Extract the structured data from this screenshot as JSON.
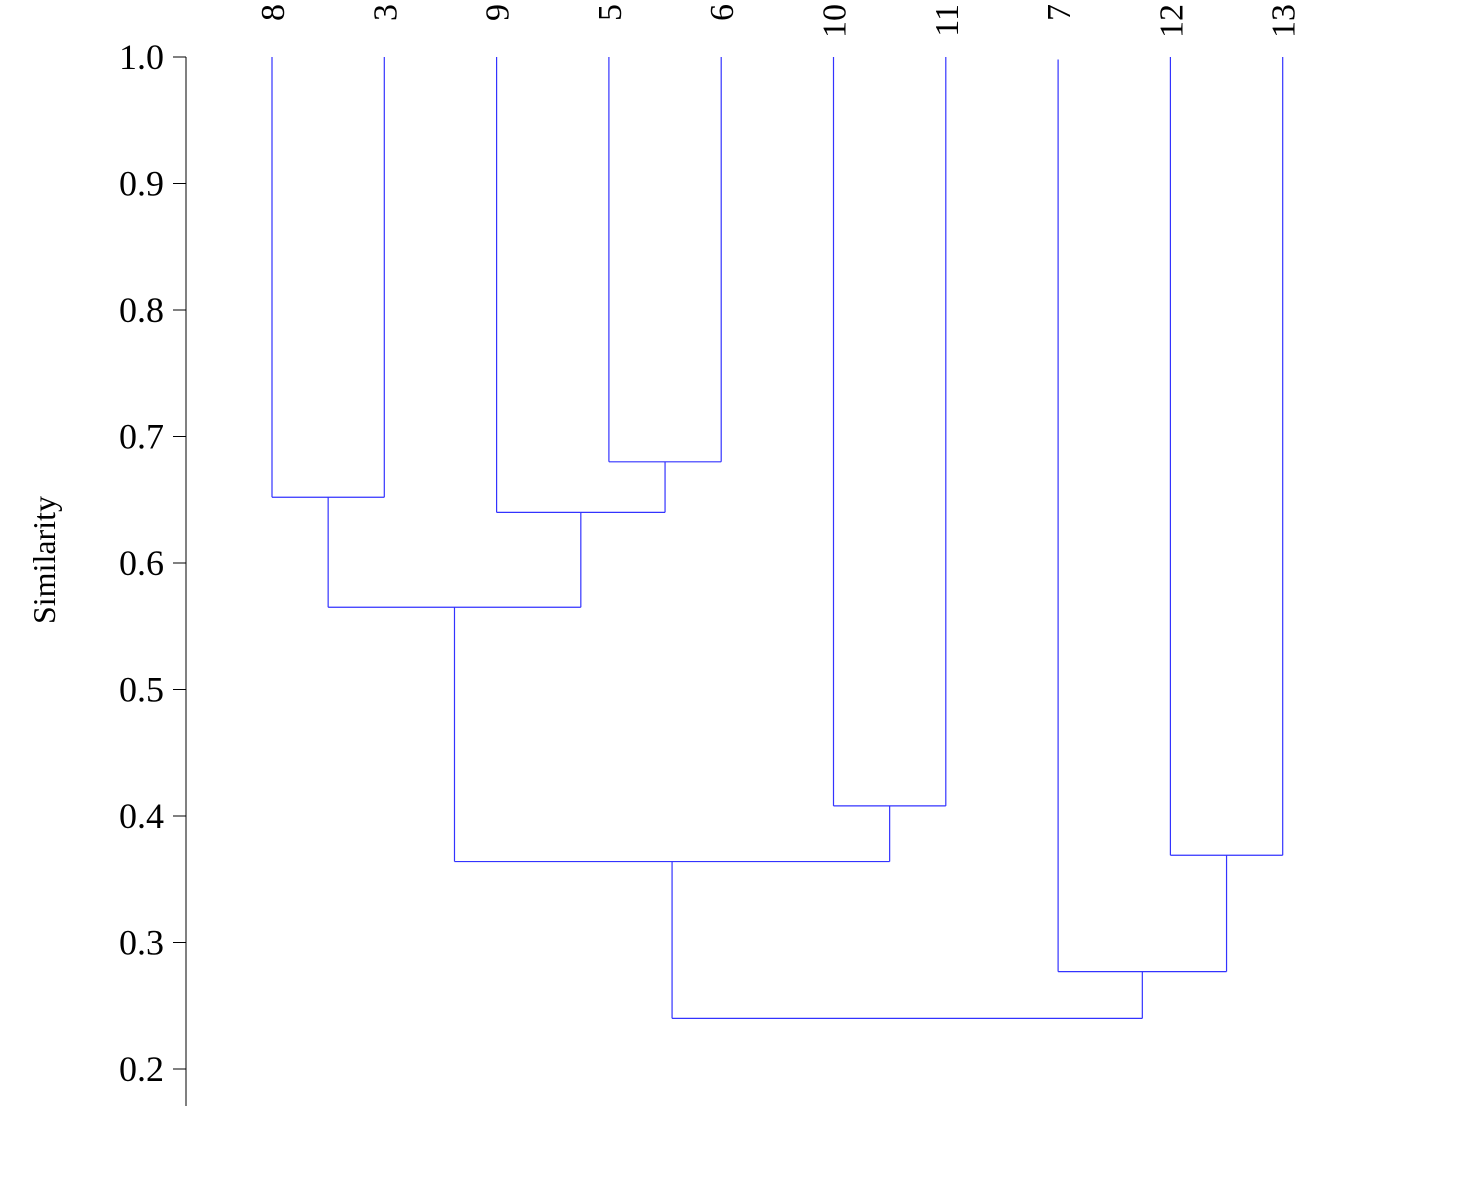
{
  "chart_data": {
    "type": "dendrogram",
    "ylabel": "Similarity",
    "ylim": [
      0.17,
      1.0
    ],
    "yticks": [
      1.0,
      0.9,
      0.8,
      0.7,
      0.6,
      0.5,
      0.4,
      0.3,
      0.2
    ],
    "ytick_labels": [
      "1.0",
      "0.9",
      "0.8",
      "0.7",
      "0.6",
      "0.5",
      "0.4",
      "0.3",
      "0.2"
    ],
    "leaves": [
      {
        "label": "8",
        "top": 1.0
      },
      {
        "label": "3",
        "top": 1.0
      },
      {
        "label": "9",
        "top": 1.0
      },
      {
        "label": "5",
        "top": 1.0
      },
      {
        "label": "6",
        "top": 1.0
      },
      {
        "label": "10",
        "top": 1.0
      },
      {
        "label": "11",
        "top": 1.0
      },
      {
        "label": "7",
        "top": 0.998
      },
      {
        "label": "12",
        "top": 1.0
      },
      {
        "label": "13",
        "top": 1.0
      }
    ],
    "merges": [
      {
        "id": "m_8_3",
        "left": "8",
        "right": "3",
        "similarity": 0.652
      },
      {
        "id": "m_5_6",
        "left": "5",
        "right": "6",
        "similarity": 0.68
      },
      {
        "id": "m_9_56",
        "left": "9",
        "right": "m_5_6",
        "similarity": 0.64
      },
      {
        "id": "m_83_956",
        "left": "m_8_3",
        "right": "m_9_56",
        "similarity": 0.565
      },
      {
        "id": "m_10_11",
        "left": "10",
        "right": "11",
        "similarity": 0.408
      },
      {
        "id": "m_A_1011",
        "left": "m_83_956",
        "right": "m_10_11",
        "similarity": 0.364
      },
      {
        "id": "m_12_13",
        "left": "12",
        "right": "13",
        "similarity": 0.369
      },
      {
        "id": "m_7_1213",
        "left": "7",
        "right": "m_12_13",
        "similarity": 0.277
      },
      {
        "id": "m_root",
        "left": "m_A_1011",
        "right": "m_7_1213",
        "similarity": 0.24
      }
    ],
    "line_color": "#3333ff"
  }
}
